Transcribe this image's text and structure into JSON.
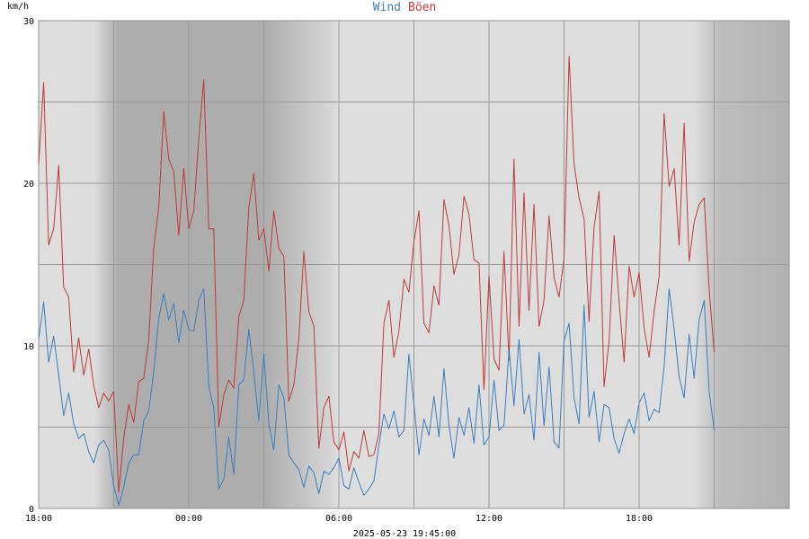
{
  "chart_data": {
    "type": "line",
    "title_parts": [
      {
        "text": "Wind",
        "color": "#3a7fc0"
      },
      {
        "text": "Böen",
        "color": "#c03a3a"
      }
    ],
    "ylabel": "km/h",
    "xlabel": "2025-05-23 19:45:00",
    "ylim": [
      0,
      30
    ],
    "y_ticks": [
      "0",
      "10",
      "20",
      "30"
    ],
    "x_ticks": [
      {
        "label": "18:00",
        "h": 0
      },
      {
        "label": "00:00",
        "h": 6
      },
      {
        "label": "06:00",
        "h": 12
      },
      {
        "label": "12:00",
        "h": 18
      },
      {
        "label": "18:00",
        "h": 24
      }
    ],
    "x_range_hours": [
      0,
      27
    ],
    "grid": true,
    "night_shading_hours": [
      3,
      12
    ],
    "series": [
      {
        "name": "Wind",
        "color": "#3a7fc0",
        "points": [
          [
            0.0,
            10.4
          ],
          [
            0.2,
            12.7
          ],
          [
            0.4,
            9.0
          ],
          [
            0.6,
            10.6
          ],
          [
            0.8,
            8.2
          ],
          [
            1.0,
            5.7
          ],
          [
            1.2,
            7.1
          ],
          [
            1.4,
            5.2
          ],
          [
            1.6,
            4.3
          ],
          [
            1.8,
            4.6
          ],
          [
            2.0,
            3.5
          ],
          [
            2.2,
            2.8
          ],
          [
            2.4,
            3.9
          ],
          [
            2.6,
            4.2
          ],
          [
            2.8,
            3.6
          ],
          [
            3.0,
            1.4
          ],
          [
            3.2,
            0.2
          ],
          [
            3.4,
            1.3
          ],
          [
            3.6,
            2.8
          ],
          [
            3.8,
            3.3
          ],
          [
            4.0,
            3.3
          ],
          [
            4.2,
            5.4
          ],
          [
            4.4,
            6.0
          ],
          [
            4.6,
            8.4
          ],
          [
            4.8,
            11.7
          ],
          [
            5.0,
            13.2
          ],
          [
            5.2,
            11.6
          ],
          [
            5.4,
            12.6
          ],
          [
            5.6,
            10.2
          ],
          [
            5.8,
            12.2
          ],
          [
            6.0,
            11.0
          ],
          [
            6.2,
            10.9
          ],
          [
            6.4,
            12.8
          ],
          [
            6.6,
            13.5
          ],
          [
            6.8,
            7.5
          ],
          [
            7.0,
            6.2
          ],
          [
            7.2,
            1.2
          ],
          [
            7.4,
            1.8
          ],
          [
            7.6,
            4.4
          ],
          [
            7.8,
            2.1
          ],
          [
            8.0,
            7.6
          ],
          [
            8.2,
            7.9
          ],
          [
            8.4,
            11.0
          ],
          [
            8.6,
            8.4
          ],
          [
            8.8,
            5.4
          ],
          [
            9.0,
            9.5
          ],
          [
            9.2,
            5.2
          ],
          [
            9.4,
            3.6
          ],
          [
            9.6,
            7.6
          ],
          [
            9.8,
            6.8
          ],
          [
            10.0,
            3.3
          ],
          [
            10.2,
            2.8
          ],
          [
            10.4,
            2.4
          ],
          [
            10.6,
            1.3
          ],
          [
            10.8,
            2.6
          ],
          [
            11.0,
            2.2
          ],
          [
            11.2,
            0.9
          ],
          [
            11.4,
            2.3
          ],
          [
            11.6,
            2.1
          ],
          [
            11.8,
            2.5
          ],
          [
            12.0,
            3.1
          ],
          [
            12.2,
            1.4
          ],
          [
            12.4,
            1.2
          ],
          [
            12.6,
            2.5
          ],
          [
            12.8,
            1.6
          ],
          [
            13.0,
            0.8
          ],
          [
            13.2,
            1.2
          ],
          [
            13.4,
            1.7
          ],
          [
            13.6,
            3.9
          ],
          [
            13.8,
            5.8
          ],
          [
            14.0,
            4.9
          ],
          [
            14.2,
            6.0
          ],
          [
            14.4,
            4.4
          ],
          [
            14.6,
            4.8
          ],
          [
            14.8,
            9.5
          ],
          [
            15.0,
            6.4
          ],
          [
            15.2,
            3.3
          ],
          [
            15.4,
            5.5
          ],
          [
            15.6,
            4.5
          ],
          [
            15.8,
            6.9
          ],
          [
            16.0,
            4.4
          ],
          [
            16.2,
            8.6
          ],
          [
            16.4,
            5.1
          ],
          [
            16.6,
            3.1
          ],
          [
            16.8,
            5.6
          ],
          [
            17.0,
            4.5
          ],
          [
            17.2,
            6.2
          ],
          [
            17.4,
            4.0
          ],
          [
            17.6,
            7.6
          ],
          [
            17.8,
            3.9
          ],
          [
            18.0,
            4.4
          ],
          [
            18.2,
            7.9
          ],
          [
            18.4,
            4.8
          ],
          [
            18.6,
            5.1
          ],
          [
            18.8,
            9.8
          ],
          [
            19.0,
            6.3
          ],
          [
            19.2,
            10.4
          ],
          [
            19.4,
            5.8
          ],
          [
            19.6,
            7.0
          ],
          [
            19.8,
            4.2
          ],
          [
            20.0,
            9.6
          ],
          [
            20.2,
            5.1
          ],
          [
            20.4,
            8.7
          ],
          [
            20.6,
            4.1
          ],
          [
            20.8,
            3.7
          ],
          [
            21.0,
            10.3
          ],
          [
            21.2,
            11.4
          ],
          [
            21.4,
            6.8
          ],
          [
            21.6,
            5.2
          ],
          [
            21.8,
            12.5
          ],
          [
            22.0,
            5.6
          ],
          [
            22.2,
            7.2
          ],
          [
            22.4,
            4.1
          ],
          [
            22.6,
            6.4
          ],
          [
            22.8,
            6.2
          ],
          [
            23.0,
            4.3
          ],
          [
            23.2,
            3.4
          ],
          [
            23.4,
            4.6
          ],
          [
            23.6,
            5.5
          ],
          [
            23.8,
            4.6
          ],
          [
            24.0,
            6.5
          ],
          [
            24.2,
            7.1
          ],
          [
            24.4,
            5.4
          ],
          [
            24.6,
            6.1
          ],
          [
            24.8,
            5.9
          ],
          [
            25.0,
            8.7
          ],
          [
            25.2,
            13.5
          ],
          [
            25.4,
            11.0
          ],
          [
            25.6,
            8.1
          ],
          [
            25.8,
            6.8
          ],
          [
            26.0,
            10.7
          ],
          [
            26.2,
            8.0
          ],
          [
            26.4,
            11.6
          ],
          [
            26.6,
            12.8
          ],
          [
            26.8,
            7.2
          ],
          [
            27.0,
            4.8
          ]
        ]
      },
      {
        "name": "Böen",
        "color": "#c03a3a",
        "points": [
          [
            0.0,
            21.2
          ],
          [
            0.2,
            26.2
          ],
          [
            0.4,
            16.2
          ],
          [
            0.6,
            17.2
          ],
          [
            0.8,
            21.1
          ],
          [
            1.0,
            13.6
          ],
          [
            1.2,
            13.0
          ],
          [
            1.4,
            8.4
          ],
          [
            1.6,
            10.5
          ],
          [
            1.8,
            8.2
          ],
          [
            2.0,
            9.8
          ],
          [
            2.2,
            7.6
          ],
          [
            2.4,
            6.2
          ],
          [
            2.6,
            7.1
          ],
          [
            2.8,
            6.6
          ],
          [
            3.0,
            7.2
          ],
          [
            3.2,
            1.0
          ],
          [
            3.4,
            4.3
          ],
          [
            3.6,
            6.4
          ],
          [
            3.8,
            5.3
          ],
          [
            4.0,
            7.8
          ],
          [
            4.2,
            8.0
          ],
          [
            4.4,
            10.4
          ],
          [
            4.6,
            16.0
          ],
          [
            4.8,
            18.5
          ],
          [
            5.0,
            24.4
          ],
          [
            5.2,
            21.5
          ],
          [
            5.4,
            20.7
          ],
          [
            5.6,
            16.8
          ],
          [
            5.8,
            20.9
          ],
          [
            6.0,
            17.2
          ],
          [
            6.2,
            18.3
          ],
          [
            6.4,
            22.7
          ],
          [
            6.6,
            26.4
          ],
          [
            6.8,
            17.2
          ],
          [
            7.0,
            17.2
          ],
          [
            7.2,
            5.0
          ],
          [
            7.4,
            7.0
          ],
          [
            7.6,
            7.9
          ],
          [
            7.8,
            7.4
          ],
          [
            8.0,
            11.8
          ],
          [
            8.2,
            12.8
          ],
          [
            8.4,
            18.5
          ],
          [
            8.6,
            20.6
          ],
          [
            8.8,
            16.5
          ],
          [
            9.0,
            17.2
          ],
          [
            9.2,
            14.6
          ],
          [
            9.4,
            18.3
          ],
          [
            9.6,
            16.0
          ],
          [
            9.8,
            15.5
          ],
          [
            10.0,
            6.6
          ],
          [
            10.2,
            7.6
          ],
          [
            10.4,
            10.5
          ],
          [
            10.6,
            15.8
          ],
          [
            10.8,
            12.1
          ],
          [
            11.0,
            11.2
          ],
          [
            11.2,
            3.7
          ],
          [
            11.4,
            6.2
          ],
          [
            11.6,
            6.9
          ],
          [
            11.8,
            4.1
          ],
          [
            12.0,
            3.6
          ],
          [
            12.2,
            4.7
          ],
          [
            12.4,
            2.3
          ],
          [
            12.6,
            3.5
          ],
          [
            12.8,
            3.1
          ],
          [
            13.0,
            4.8
          ],
          [
            13.2,
            3.2
          ],
          [
            13.4,
            3.3
          ],
          [
            13.6,
            4.6
          ],
          [
            13.8,
            11.4
          ],
          [
            14.0,
            12.8
          ],
          [
            14.2,
            9.3
          ],
          [
            14.4,
            10.9
          ],
          [
            14.6,
            14.1
          ],
          [
            14.8,
            13.3
          ],
          [
            15.0,
            16.4
          ],
          [
            15.2,
            18.3
          ],
          [
            15.4,
            11.4
          ],
          [
            15.6,
            10.8
          ],
          [
            15.8,
            13.7
          ],
          [
            16.0,
            12.5
          ],
          [
            16.2,
            19.0
          ],
          [
            16.4,
            17.4
          ],
          [
            16.6,
            14.4
          ],
          [
            16.8,
            15.6
          ],
          [
            17.0,
            19.2
          ],
          [
            17.2,
            18.1
          ],
          [
            17.4,
            15.3
          ],
          [
            17.6,
            15.1
          ],
          [
            17.8,
            7.3
          ],
          [
            18.0,
            14.3
          ],
          [
            18.2,
            9.2
          ],
          [
            18.4,
            8.5
          ],
          [
            18.6,
            15.8
          ],
          [
            18.8,
            9.1
          ],
          [
            19.0,
            21.5
          ],
          [
            19.2,
            11.2
          ],
          [
            19.4,
            19.4
          ],
          [
            19.6,
            12.2
          ],
          [
            19.8,
            18.7
          ],
          [
            20.0,
            11.2
          ],
          [
            20.2,
            12.8
          ],
          [
            20.4,
            18.0
          ],
          [
            20.6,
            14.2
          ],
          [
            20.8,
            13.0
          ],
          [
            21.0,
            15.4
          ],
          [
            21.2,
            27.8
          ],
          [
            21.4,
            21.2
          ],
          [
            21.6,
            19.1
          ],
          [
            21.8,
            17.8
          ],
          [
            22.0,
            11.5
          ],
          [
            22.2,
            17.3
          ],
          [
            22.4,
            19.5
          ],
          [
            22.6,
            7.5
          ],
          [
            22.8,
            10.3
          ],
          [
            23.0,
            16.8
          ],
          [
            23.2,
            12.8
          ],
          [
            23.4,
            9.0
          ],
          [
            23.6,
            14.9
          ],
          [
            23.8,
            13.0
          ],
          [
            24.0,
            14.5
          ],
          [
            24.2,
            11.1
          ],
          [
            24.4,
            9.3
          ],
          [
            24.6,
            12.1
          ],
          [
            24.8,
            14.3
          ],
          [
            25.0,
            24.3
          ],
          [
            25.2,
            19.8
          ],
          [
            25.4,
            20.9
          ],
          [
            25.6,
            16.2
          ],
          [
            25.8,
            23.7
          ],
          [
            26.0,
            15.2
          ],
          [
            26.2,
            17.6
          ],
          [
            26.4,
            18.7
          ],
          [
            26.6,
            19.1
          ],
          [
            26.8,
            13.5
          ],
          [
            27.0,
            9.6
          ]
        ]
      }
    ]
  }
}
